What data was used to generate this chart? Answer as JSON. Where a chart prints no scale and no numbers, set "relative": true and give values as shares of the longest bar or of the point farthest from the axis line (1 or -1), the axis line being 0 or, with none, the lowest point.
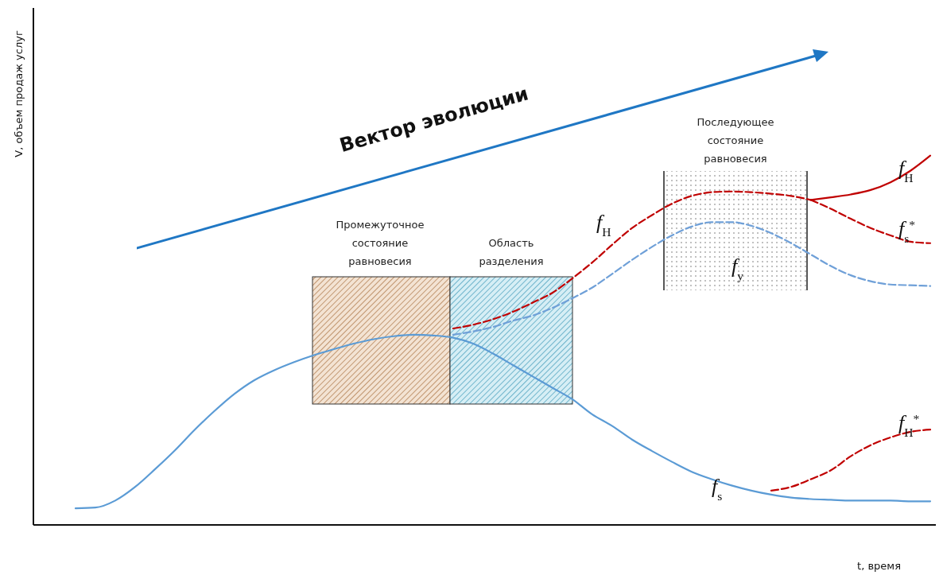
{
  "chart_data": {
    "type": "line",
    "relative": true,
    "xlabel": "t, время",
    "ylabel": "V, объем продаж услуг",
    "categories": [
      null,
      null,
      null,
      null,
      null,
      null,
      null,
      null,
      null,
      null,
      null,
      null,
      null,
      null,
      null,
      null,
      null,
      null,
      null,
      null,
      null,
      null,
      null,
      null,
      null,
      null,
      null,
      null,
      null,
      null,
      null,
      null,
      null,
      null,
      null,
      null,
      null,
      null,
      null,
      null,
      null,
      null,
      null,
      null
    ],
    "series": [
      {
        "name": "f$_{s}$",
        "color": "#5b9bd5",
        "line_style": "solid",
        "values": [
          0.045,
          0.047,
          0.066,
          0.103,
          0.151,
          0.202,
          0.258,
          0.309,
          0.355,
          0.392,
          0.419,
          0.441,
          0.46,
          0.476,
          0.491,
          0.503,
          0.511,
          0.515,
          0.513,
          0.507,
          0.491,
          0.464,
          0.433,
          0.402,
          0.371,
          0.34,
          0.299,
          0.268,
          0.231,
          0.2,
          0.171,
          0.144,
          0.124,
          0.107,
          0.093,
          0.082,
          0.074,
          0.07,
          0.068,
          0.066,
          0.066,
          0.066,
          0.064,
          0.064
        ]
      },
      {
        "name": "f$_{Н}$",
        "color": "#c00000",
        "line_style": "dashed",
        "values": [
          null,
          null,
          null,
          null,
          null,
          null,
          null,
          null,
          null,
          null,
          null,
          null,
          null,
          null,
          null,
          null,
          null,
          null,
          null,
          0.532,
          0.542,
          0.557,
          0.577,
          0.602,
          0.629,
          0.668,
          0.711,
          0.759,
          0.804,
          0.839,
          0.87,
          0.891,
          0.901,
          0.903,
          0.901,
          0.897,
          0.891,
          0.88,
          null,
          null,
          null,
          null,
          null,
          null
        ]
      },
      {
        "name": "f$_{у}$",
        "color": "#6fa0d8",
        "line_style": "dashed",
        "values": [
          null,
          null,
          null,
          null,
          null,
          null,
          null,
          null,
          null,
          null,
          null,
          null,
          null,
          null,
          null,
          null,
          null,
          null,
          null,
          0.515,
          0.524,
          0.536,
          0.553,
          0.567,
          0.588,
          0.614,
          0.643,
          0.68,
          0.718,
          0.753,
          0.784,
          0.808,
          0.82,
          0.82,
          0.81,
          0.79,
          0.763,
          0.732,
          0.701,
          0.676,
          0.66,
          0.651,
          0.649,
          0.647
        ]
      },
      {
        "name": "f$_{Н}$",
        "color": "#c00000",
        "line_style": "solid",
        "values": [
          null,
          null,
          null,
          null,
          null,
          null,
          null,
          null,
          null,
          null,
          null,
          null,
          null,
          null,
          null,
          null,
          null,
          null,
          null,
          null,
          null,
          null,
          null,
          null,
          null,
          null,
          null,
          null,
          null,
          null,
          null,
          null,
          null,
          null,
          null,
          null,
          null,
          0.88,
          0.887,
          0.895,
          0.907,
          0.928,
          0.959,
          1
        ]
      },
      {
        "name": "f$_{s}$$^{*}$",
        "color": "#c00000",
        "line_style": "dashed",
        "values": [
          null,
          null,
          null,
          null,
          null,
          null,
          null,
          null,
          null,
          null,
          null,
          null,
          null,
          null,
          null,
          null,
          null,
          null,
          null,
          null,
          null,
          null,
          null,
          null,
          null,
          null,
          null,
          null,
          null,
          null,
          null,
          null,
          null,
          null,
          null,
          null,
          null,
          0.88,
          0.856,
          0.829,
          0.804,
          0.784,
          0.767,
          0.763
        ]
      },
      {
        "name": "f$_{Н}$$^{*}$",
        "color": "#c00000",
        "line_style": "dashed",
        "values": [
          null,
          null,
          null,
          null,
          null,
          null,
          null,
          null,
          null,
          null,
          null,
          null,
          null,
          null,
          null,
          null,
          null,
          null,
          null,
          null,
          null,
          null,
          null,
          null,
          null,
          null,
          null,
          null,
          null,
          null,
          null,
          null,
          null,
          null,
          null,
          0.093,
          0.103,
          0.124,
          0.148,
          0.186,
          0.216,
          0.237,
          0.252,
          0.258
        ]
      }
    ],
    "annotations": [
      "Вектор эволюции",
      "Промежуточное состояние равновесия",
      "Область разделения",
      "Последующее состояние равновесия"
    ],
    "legend": false,
    "grid": false,
    "marker": "none"
  }
}
